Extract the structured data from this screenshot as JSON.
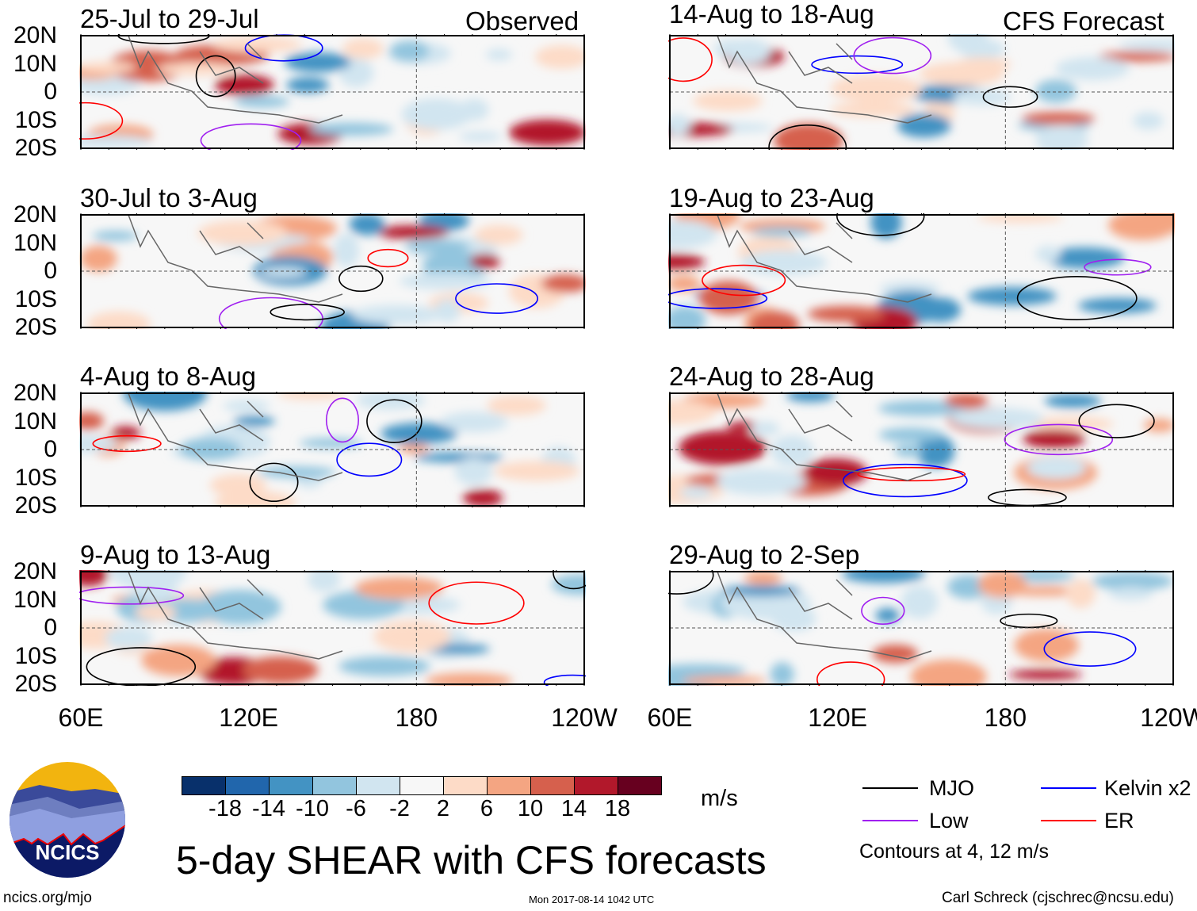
{
  "headers": {
    "observed": "Observed",
    "forecast": "CFS Forecast"
  },
  "panels_left": [
    "25-Jul to 29-Jul",
    "30-Jul to 3-Aug",
    "4-Aug to 8-Aug",
    "9-Aug to 13-Aug"
  ],
  "panels_right": [
    "14-Aug to 18-Aug",
    "19-Aug to 23-Aug",
    "24-Aug to 28-Aug",
    "29-Aug to 2-Sep"
  ],
  "lat_labels": [
    "20N",
    "10N",
    "0",
    "10S",
    "20S"
  ],
  "lon_labels": [
    "60E",
    "120E",
    "180",
    "120W"
  ],
  "colorbar": {
    "colors": [
      "#08306b",
      "#2166ac",
      "#4393c3",
      "#92c5de",
      "#d1e5f0",
      "#f7f7f7",
      "#fddbc7",
      "#f4a582",
      "#d6604d",
      "#b2182b",
      "#67001f"
    ],
    "labels": [
      "-18",
      "-14",
      "-10",
      "-6",
      "-2",
      "2",
      "6",
      "10",
      "14",
      "18"
    ],
    "units": "m/s"
  },
  "title": "5-day SHEAR with CFS forecasts",
  "legend": {
    "mjo": {
      "label": "MJO",
      "color": "#000000"
    },
    "kelvin": {
      "label": "Kelvin x2",
      "color": "#0000ff"
    },
    "low": {
      "label": "Low",
      "color": "#a020f0"
    },
    "er": {
      "label": "ER",
      "color": "#ff0000"
    },
    "note": "Contours at 4, 12 m/s"
  },
  "logo_text": "NCICS",
  "site": "ncics.org/mjo",
  "timestamp": "Mon 2017-08-14 1042 UTC",
  "credit": "Carl Schreck (cjschrec@ncsu.edu)"
}
